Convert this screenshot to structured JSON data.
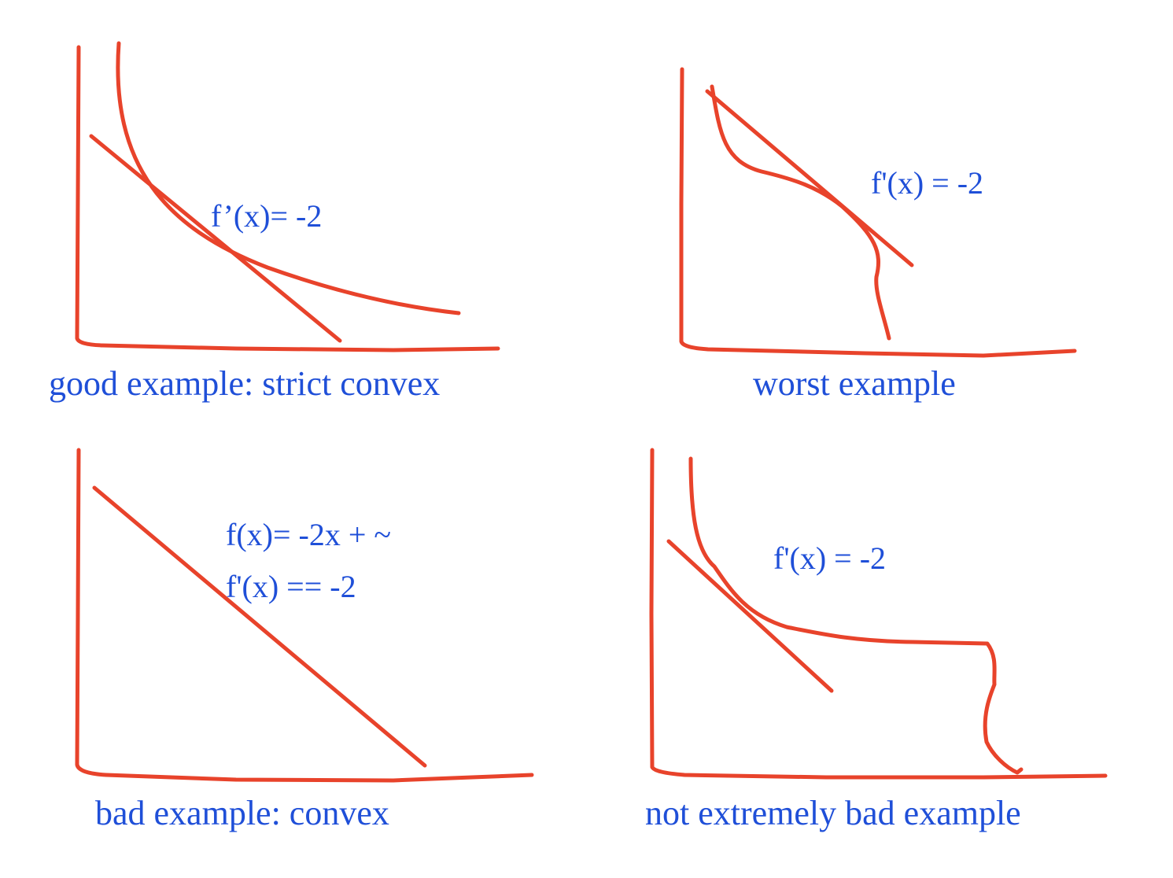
{
  "colors": {
    "ink": "#e8432b",
    "text": "#1f4fd8",
    "background": "#ffffff"
  },
  "panels": [
    {
      "id": "good",
      "annotations": [
        "f’(x)= -2"
      ],
      "caption": "good example: strict convex"
    },
    {
      "id": "worst",
      "annotations": [
        "f'(x) = -2"
      ],
      "caption": "worst example"
    },
    {
      "id": "bad",
      "annotations": [
        "f(x)= -2x + ~",
        "f'(x) == -2"
      ],
      "caption": "bad example: convex"
    },
    {
      "id": "not-extremely-bad",
      "annotations": [
        "f'(x) = -2"
      ],
      "caption": "not extremely bad example"
    }
  ]
}
